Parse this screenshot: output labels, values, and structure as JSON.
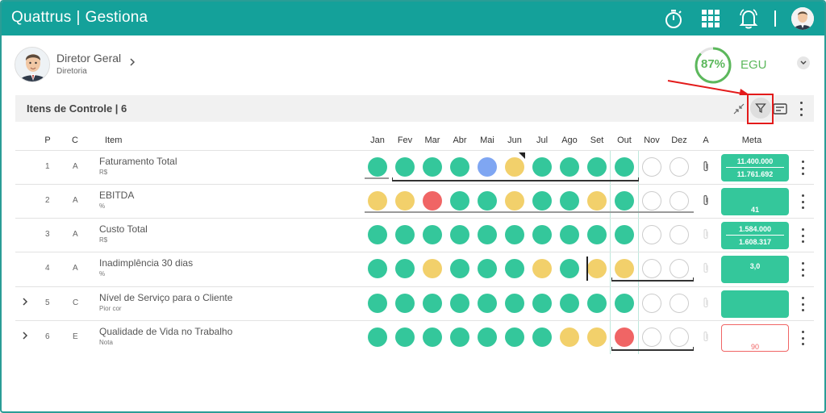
{
  "app": {
    "brand_left": "Quattrus",
    "separator": "|",
    "brand_right": "Gestiona"
  },
  "topbar_icons": [
    "stopwatch-icon",
    "apps-grid-icon",
    "bell-icon",
    "avatar"
  ],
  "user": {
    "name": "Diretor Geral",
    "role": "Diretoria"
  },
  "egu": {
    "value": "87%",
    "label": "EGU",
    "fraction": 0.87
  },
  "section": {
    "title": "Itens de Controle | 6"
  },
  "columns": {
    "p": "P",
    "c": "C",
    "item": "Item",
    "months": [
      "Jan",
      "Fev",
      "Mar",
      "Abr",
      "Mai",
      "Jun",
      "Jul",
      "Ago",
      "Set",
      "Out",
      "Nov",
      "Dez"
    ],
    "a": "A",
    "meta": "Meta"
  },
  "rows": [
    {
      "p": "1",
      "c": "A",
      "name": "Faturamento Total",
      "unit": "R$",
      "expand": false,
      "status": [
        "g",
        "g",
        "g",
        "g",
        "b",
        "y",
        "g",
        "g",
        "g",
        "g",
        "e",
        "e"
      ],
      "meta": [
        "11.400.000",
        "11.761.692"
      ],
      "attach": true
    },
    {
      "p": "2",
      "c": "A",
      "name": "EBITDA",
      "unit": "%",
      "expand": false,
      "status": [
        "y",
        "y",
        "r",
        "g",
        "g",
        "y",
        "g",
        "g",
        "y",
        "g",
        "e",
        "e"
      ],
      "meta": [
        "41"
      ],
      "attach": true
    },
    {
      "p": "3",
      "c": "A",
      "name": "Custo Total",
      "unit": "R$",
      "expand": false,
      "status": [
        "g",
        "g",
        "g",
        "g",
        "g",
        "g",
        "g",
        "g",
        "g",
        "g",
        "e",
        "e"
      ],
      "meta": [
        "1.584.000",
        "1.608.317"
      ],
      "attach": false
    },
    {
      "p": "4",
      "c": "A",
      "name": "Inadimplência 30 dias",
      "unit": "%",
      "expand": false,
      "status": [
        "g",
        "g",
        "y",
        "g",
        "g",
        "g",
        "y",
        "g",
        "y",
        "y",
        "e",
        "e"
      ],
      "meta": [
        "3,0"
      ],
      "attach": false
    },
    {
      "p": "5",
      "c": "C",
      "name": "Nível de Serviço para o Cliente",
      "unit": "Pior cor",
      "expand": true,
      "status": [
        "g",
        "g",
        "g",
        "g",
        "g",
        "g",
        "g",
        "g",
        "g",
        "g",
        "e",
        "e"
      ],
      "meta": [],
      "attach": false
    },
    {
      "p": "6",
      "c": "E",
      "name": "Qualidade de Vida no Trabalho",
      "unit": "Nota",
      "expand": true,
      "status": [
        "g",
        "g",
        "g",
        "g",
        "g",
        "g",
        "g",
        "y",
        "y",
        "r",
        "e",
        "e"
      ],
      "meta": [
        "90"
      ],
      "attach": false
    }
  ],
  "colors": {
    "green": "#34c79b",
    "yellow": "#f2d06b",
    "red": "#f06565",
    "blue": "#7fa6f2",
    "teal_bar": "#14a19a",
    "highlight": "#e31b1b"
  }
}
